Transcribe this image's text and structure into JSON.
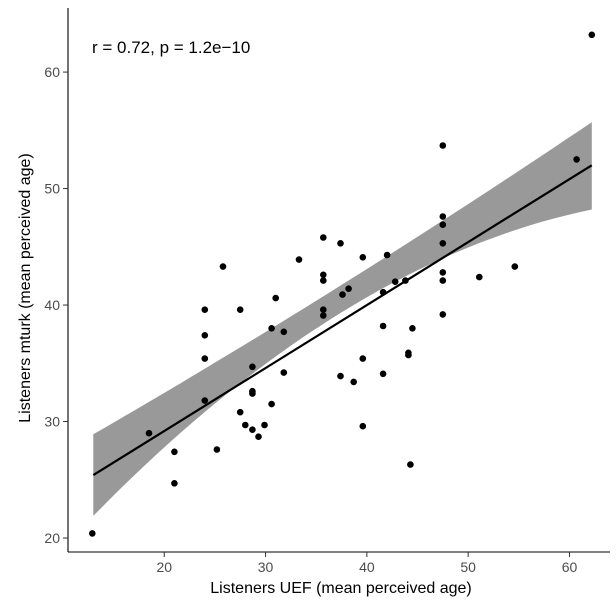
{
  "chart_data": {
    "type": "scatter",
    "title": "",
    "xlabel": "Listeners UEF (mean perceived age)",
    "ylabel": "Listeners mturk (mean perceived age)",
    "xlim": [
      10.5,
      64
    ],
    "ylim": [
      18.8,
      65.5
    ],
    "xticks": [
      20,
      30,
      40,
      50,
      60
    ],
    "yticks": [
      20,
      30,
      40,
      50,
      60
    ],
    "grid": false,
    "annotation": "r = 0.72, p = 1.2e−10",
    "regression": {
      "x_start": 13,
      "y_start": 25.4,
      "x_end": 62.2,
      "y_end": 52.0,
      "ci_start": [
        21.9,
        28.9
      ],
      "ci_mid": [
        37.7,
        40.1
      ],
      "ci_mid_x": 34.5,
      "ci_end": [
        48.2,
        55.7
      ]
    },
    "points": [
      [
        12.9,
        20.4
      ],
      [
        18.5,
        29.0
      ],
      [
        21.0,
        27.4
      ],
      [
        21.0,
        24.7
      ],
      [
        24.0,
        39.6
      ],
      [
        24.0,
        37.4
      ],
      [
        24.0,
        35.4
      ],
      [
        24.0,
        31.8
      ],
      [
        25.2,
        27.6
      ],
      [
        25.8,
        43.3
      ],
      [
        27.5,
        39.6
      ],
      [
        27.5,
        30.8
      ],
      [
        28.0,
        29.7
      ],
      [
        28.7,
        34.7
      ],
      [
        28.7,
        32.4
      ],
      [
        28.7,
        32.6
      ],
      [
        28.7,
        29.3
      ],
      [
        29.3,
        28.7
      ],
      [
        29.9,
        29.7
      ],
      [
        30.6,
        38.0
      ],
      [
        30.6,
        31.5
      ],
      [
        31.0,
        40.6
      ],
      [
        31.8,
        37.7
      ],
      [
        31.8,
        34.2
      ],
      [
        33.3,
        43.9
      ],
      [
        35.7,
        45.8
      ],
      [
        35.7,
        42.6
      ],
      [
        35.7,
        42.1
      ],
      [
        35.7,
        39.6
      ],
      [
        35.7,
        39.1
      ],
      [
        37.4,
        45.3
      ],
      [
        37.4,
        33.9
      ],
      [
        37.6,
        40.9
      ],
      [
        38.2,
        41.4
      ],
      [
        38.7,
        33.4
      ],
      [
        39.6,
        44.1
      ],
      [
        39.6,
        35.4
      ],
      [
        39.6,
        29.6
      ],
      [
        41.6,
        41.1
      ],
      [
        41.6,
        38.2
      ],
      [
        41.6,
        34.1
      ],
      [
        42.0,
        44.3
      ],
      [
        42.8,
        42.0
      ],
      [
        43.8,
        42.1
      ],
      [
        44.1,
        35.9
      ],
      [
        44.1,
        35.7
      ],
      [
        44.3,
        26.3
      ],
      [
        44.5,
        38.0
      ],
      [
        47.5,
        53.7
      ],
      [
        47.5,
        47.6
      ],
      [
        47.5,
        46.9
      ],
      [
        47.5,
        45.3
      ],
      [
        47.5,
        42.8
      ],
      [
        47.5,
        42.1
      ],
      [
        47.5,
        39.2
      ],
      [
        51.1,
        42.4
      ],
      [
        54.6,
        43.3
      ],
      [
        60.7,
        52.5
      ],
      [
        62.2,
        63.2
      ]
    ]
  }
}
